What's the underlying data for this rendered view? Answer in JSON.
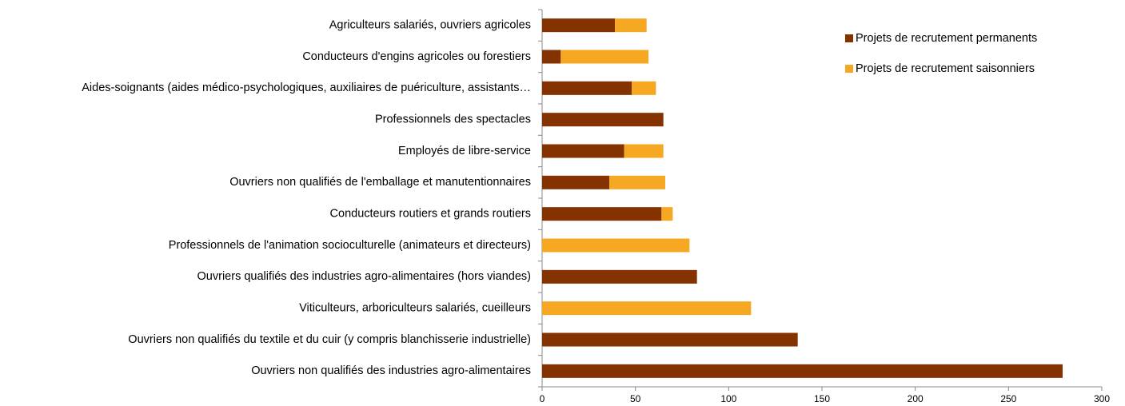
{
  "chart_data": {
    "type": "stacked_barh",
    "categories": [
      "Agriculteurs salariés, ouvriers agricoles",
      "Conducteurs d'engins agricoles ou forestiers",
      "Aides-soignants (aides médico-psychologiques, auxiliaires de puériculture, assistants…",
      "Professionnels des spectacles",
      "Employés de libre-service",
      "Ouvriers non qualifiés de l'emballage et manutentionnaires",
      "Conducteurs routiers et grands routiers",
      "Professionnels de l'animation socioculturelle (animateurs et directeurs)",
      "Ouvriers qualifiés des industries agro-alimentaires (hors viandes)",
      "Viticulteurs, arboriculteurs salariés, cueilleurs",
      "Ouvriers non qualifiés du textile et du cuir (y compris blanchisserie industrielle)",
      "Ouvriers non qualifiés des industries agro-alimentaires"
    ],
    "series": [
      {
        "name": "Projets de recrutement permanents",
        "color": "#833200",
        "values": [
          39,
          10,
          48,
          65,
          44,
          36,
          64,
          0,
          83,
          0,
          137,
          279
        ]
      },
      {
        "name": "Projets de recrutement saisonniers",
        "color": "#f6a823",
        "values": [
          17,
          47,
          13,
          0,
          21,
          30,
          6,
          79,
          0,
          112,
          0,
          0
        ]
      }
    ],
    "xlim": [
      0,
      300
    ],
    "xticks": [
      0,
      50,
      100,
      150,
      200,
      250,
      300
    ],
    "legend": "upper right"
  }
}
